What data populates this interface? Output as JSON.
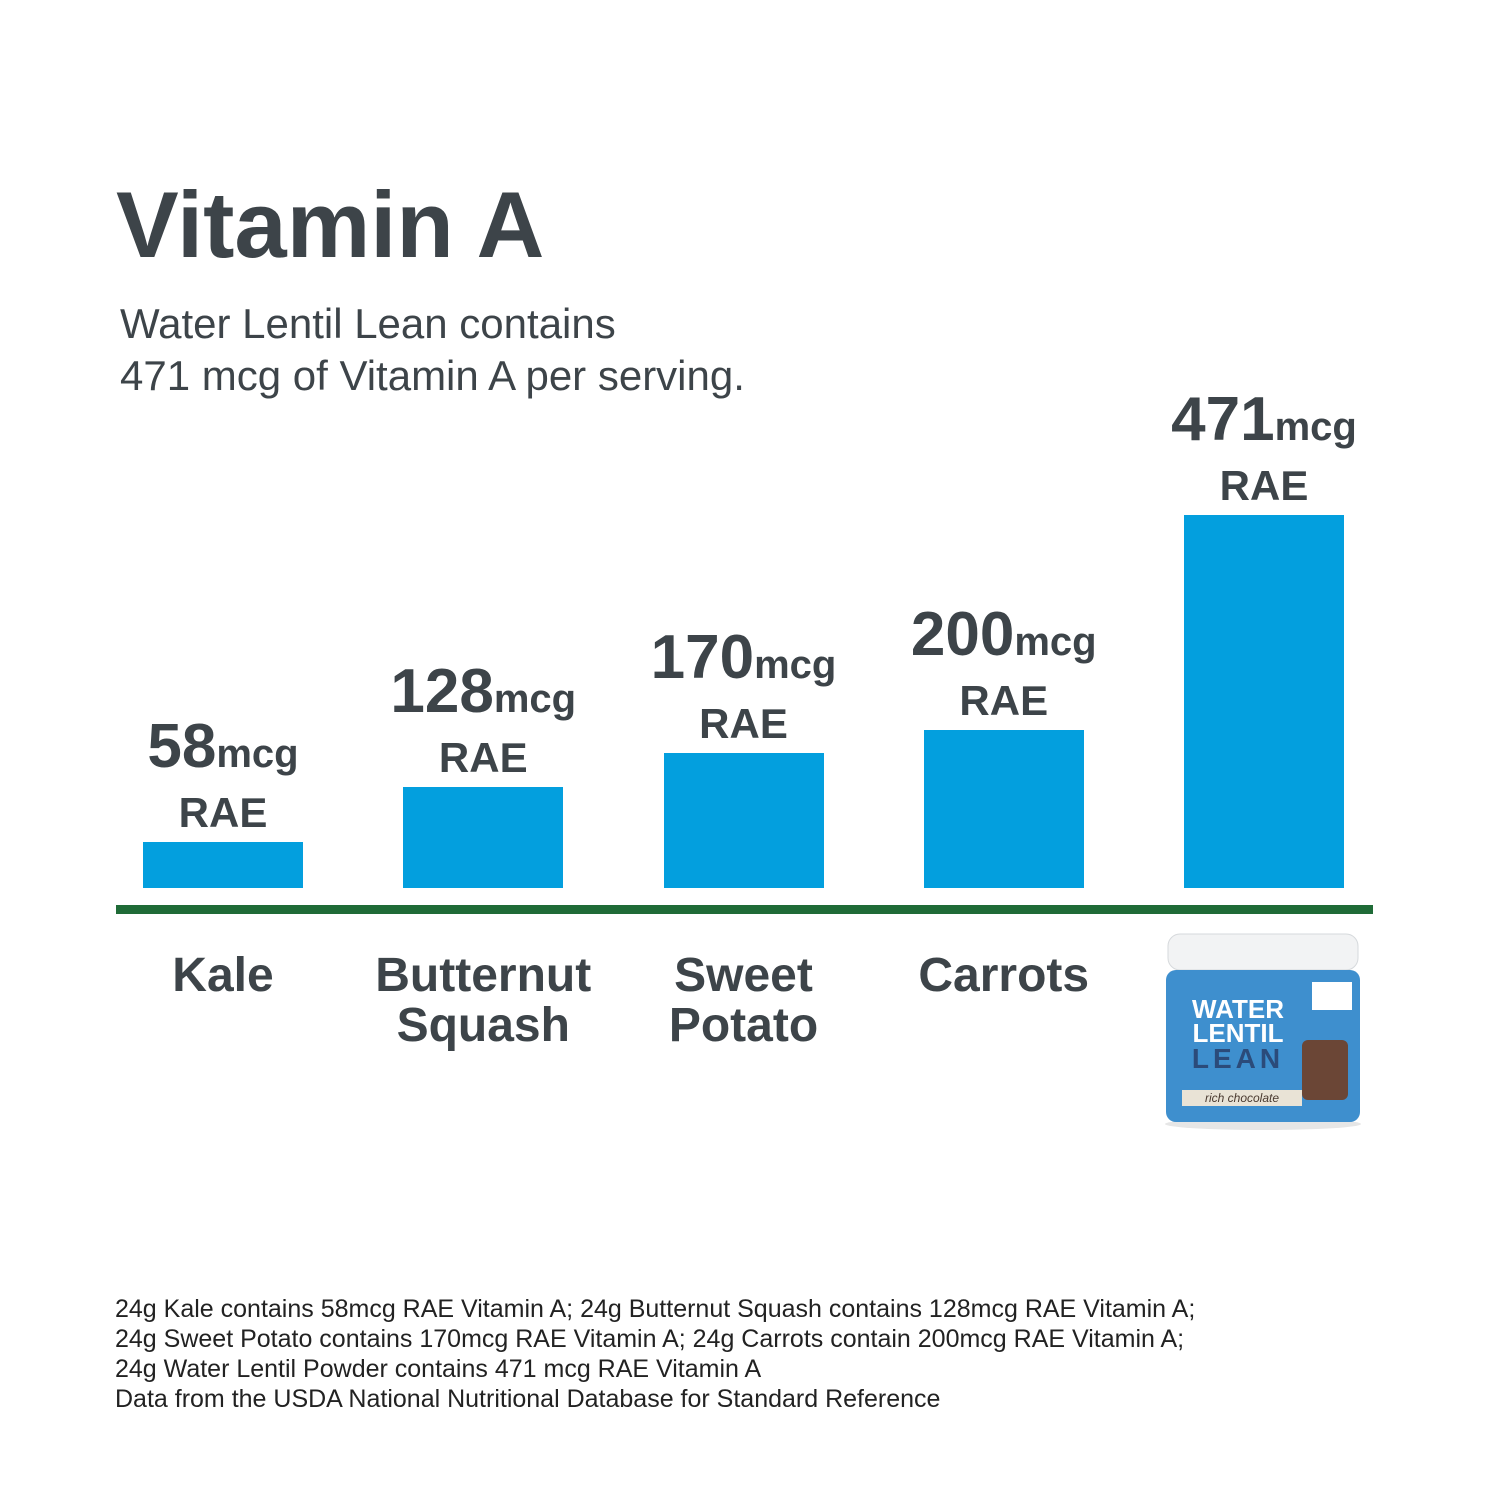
{
  "chart_data": {
    "type": "bar",
    "title": "Vitamin A",
    "subtitle": [
      "Water Lentil Lean contains",
      "471 mcg of Vitamin A per serving."
    ],
    "categories": [
      "Kale",
      "Butternut Squash",
      "Sweet Potato",
      "Carrots",
      null
    ],
    "values": [
      58,
      128,
      170,
      200,
      471
    ],
    "unit": "mcg",
    "basis": "RAE",
    "color": "#039fde",
    "baseline_color": "#1f6b37",
    "product": {
      "lines": [
        "WATER",
        "LENTIL",
        "LEAN"
      ],
      "flavor": "rich chocolate"
    },
    "footnote": [
      "24g Kale contains 58mcg RAE Vitamin A; 24g Butternut Squash contains 128mcg RAE Vitamin A;",
      "24g Sweet Potato contains 170mcg RAE Vitamin A; 24g Carrots contain 200mcg RAE Vitamin A;",
      "24g Water Lentil Powder contains 471 mcg RAE Vitamin A",
      "Data from the USDA National Nutritional Database for Standard Reference"
    ]
  }
}
